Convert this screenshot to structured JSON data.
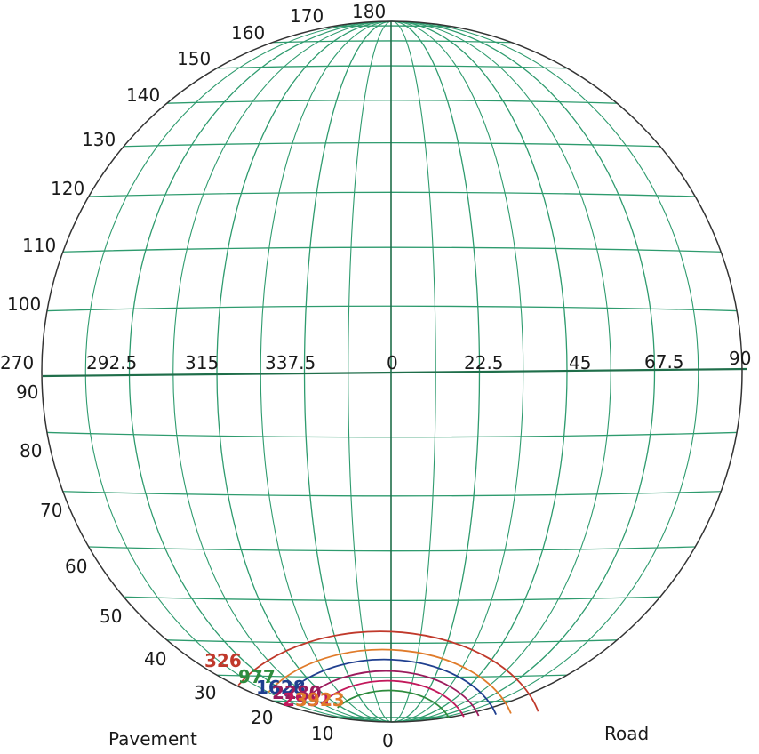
{
  "colors": {
    "grid": "#2e9b6e",
    "equator": "#1f6e4a",
    "outline": "#333333",
    "text": "#1a1a1a",
    "series_colors": [
      "#c0392b",
      "#e07b2a",
      "#1f3f8f",
      "#9b1b5c",
      "#c2185b",
      "#2e8b3d"
    ]
  },
  "top_labels": [
    "270",
    "292.5",
    "315",
    "337.5",
    "0",
    "22.5",
    "45",
    "67.5",
    "90"
  ],
  "left_labels": [
    "180",
    "170",
    "160",
    "150",
    "140",
    "130",
    "120",
    "110",
    "100",
    "90",
    "80",
    "70",
    "60",
    "50",
    "40",
    "30",
    "20",
    "10",
    "0"
  ],
  "bottom_left_caption": "Pavement",
  "bottom_right_caption": "Road",
  "curve_labels": [
    {
      "text": "326",
      "color": "#c0392b"
    },
    {
      "text": "977",
      "color": "#2e8b3d"
    },
    {
      "text": "1628",
      "color": "#1f3f8f"
    },
    {
      "text": "2280",
      "color": "#9b1b5c"
    },
    {
      "text": "2931",
      "color": "#c2185b"
    },
    {
      "text": "3923",
      "color": "#e07b2a"
    }
  ]
}
